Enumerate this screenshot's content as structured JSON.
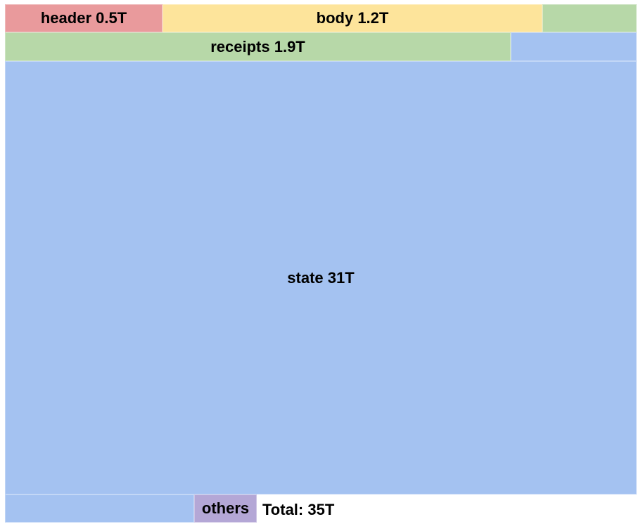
{
  "blocks": {
    "header": {
      "label": "header 0.5T",
      "color": "#e99a9c"
    },
    "body": {
      "label": "body 1.2T",
      "color": "#fde49b"
    },
    "receipts": {
      "label": "receipts 1.9T",
      "color": "#b7d8a8"
    },
    "state": {
      "label": "state 31T",
      "color": "#a4c2f1"
    },
    "others": {
      "label": "others",
      "color": "#b4a7d6"
    }
  },
  "total": "Total: 35T"
}
